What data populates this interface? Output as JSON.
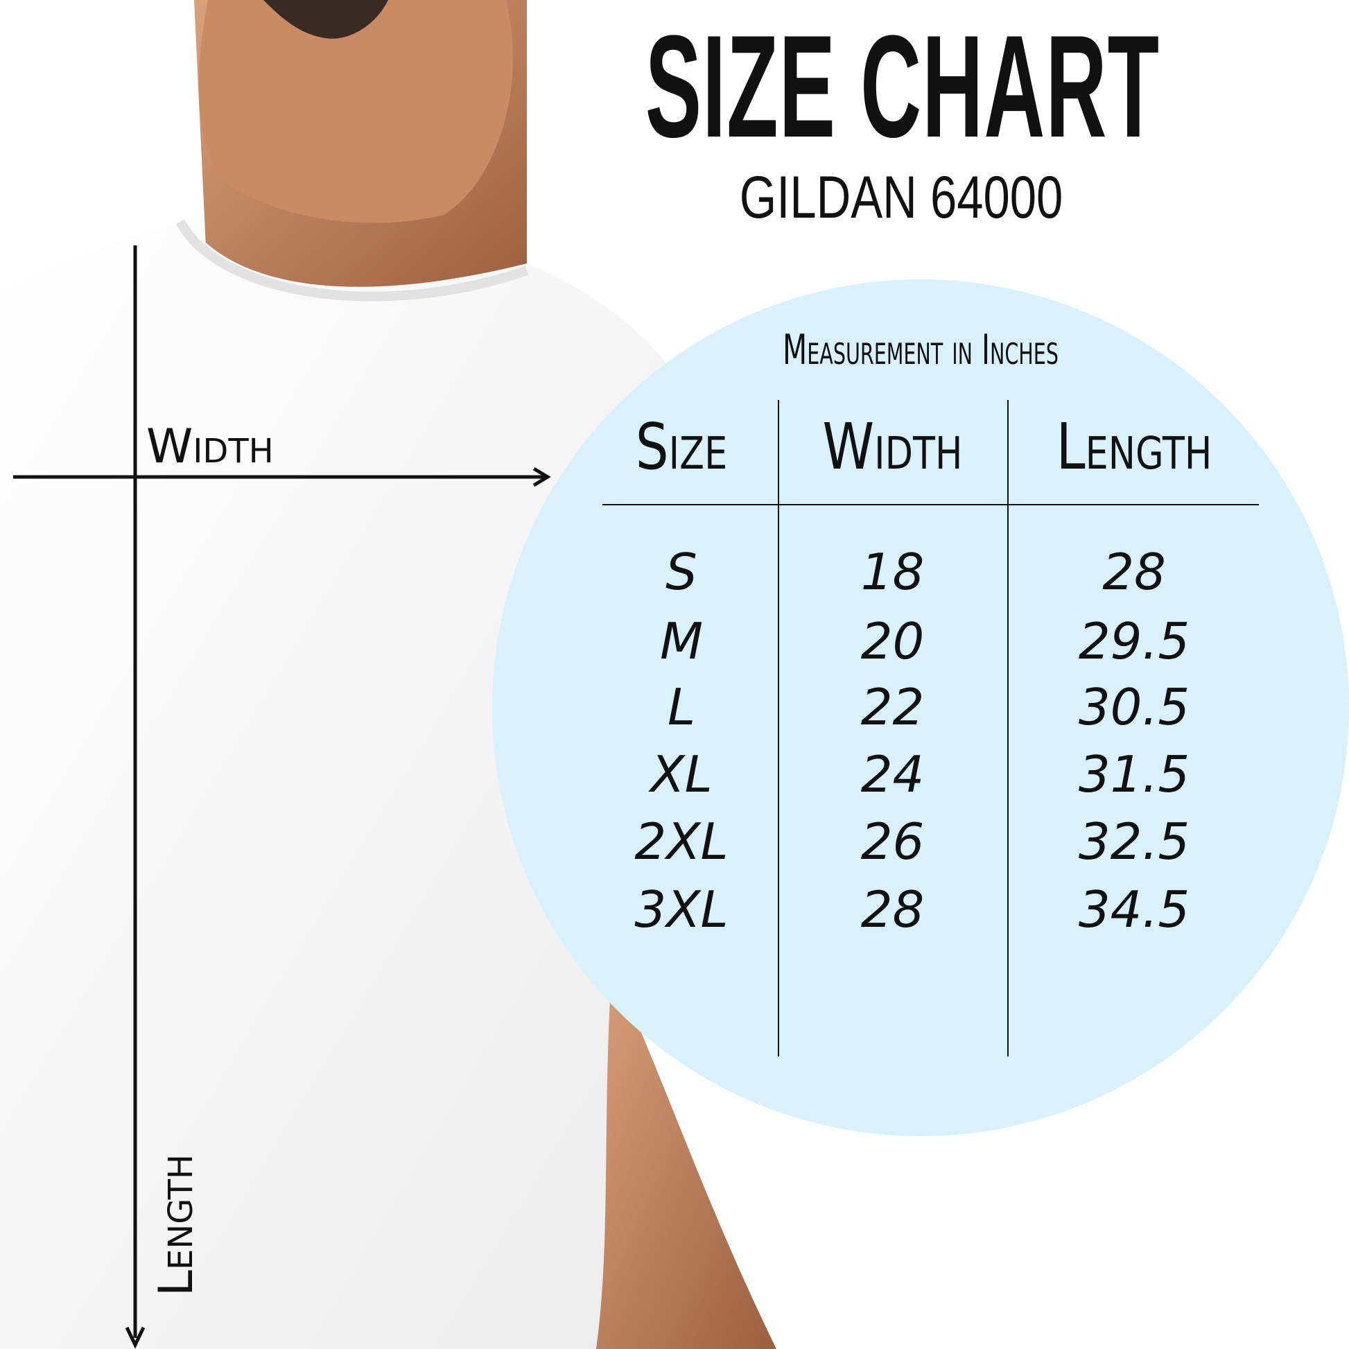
{
  "header": {
    "title": "SIZE CHART",
    "subtitle": "GILDAN 64000"
  },
  "diagram": {
    "width_label": "Width",
    "length_label": "Length"
  },
  "table": {
    "caption": "Measurement in Inches",
    "columns": [
      "Size",
      "Width",
      "Length"
    ],
    "rows": [
      [
        "S",
        "18",
        "28"
      ],
      [
        "M",
        "20",
        "29.5"
      ],
      [
        "L",
        "22",
        "30.5"
      ],
      [
        "XL",
        "24",
        "31.5"
      ],
      [
        "2XL",
        "26",
        "32.5"
      ],
      [
        "3XL",
        "28",
        "34.5"
      ]
    ]
  },
  "colors": {
    "circle": "#d9f0fd",
    "text": "#111111"
  }
}
